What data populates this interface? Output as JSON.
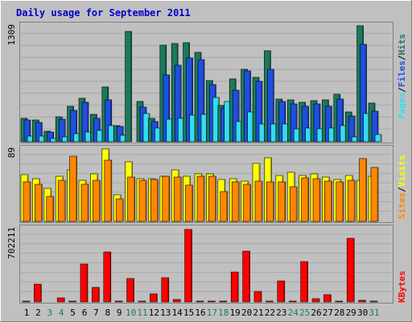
{
  "chart_data": [
    {
      "type": "bar",
      "title": "Daily usage for September 2011",
      "panel": "hits-files-pages",
      "categories": [
        "1",
        "2",
        "3",
        "4",
        "5",
        "6",
        "7",
        "8",
        "9",
        "10",
        "11",
        "12",
        "13",
        "14",
        "15",
        "16",
        "17",
        "18",
        "19",
        "20",
        "21",
        "22",
        "23",
        "24",
        "25",
        "26",
        "27",
        "28",
        "29",
        "30",
        "31"
      ],
      "weekend_days": [
        "3",
        "4",
        "10",
        "11",
        "17",
        "18",
        "24",
        "25",
        "31"
      ],
      "ymax_label": "1309",
      "ylim": [
        0,
        1309
      ],
      "legend": [
        "Pages",
        "/",
        "Files",
        "/",
        "Hits"
      ],
      "series": [
        {
          "name": "Hits",
          "color": "#1a7a5c",
          "values": [
            260,
            240,
            120,
            280,
            400,
            490,
            310,
            610,
            180,
            1240,
            450,
            260,
            1080,
            1100,
            1110,
            1000,
            690,
            410,
            700,
            810,
            720,
            1020,
            480,
            470,
            440,
            460,
            470,
            530,
            330,
            1300,
            430
          ]
        },
        {
          "name": "Files",
          "color": "#1e4fe0",
          "values": [
            240,
            220,
            110,
            250,
            350,
            440,
            260,
            470,
            170,
            0,
            390,
            230,
            750,
            860,
            940,
            920,
            640,
            380,
            580,
            790,
            680,
            810,
            450,
            420,
            400,
            420,
            400,
            480,
            290,
            1090,
            340
          ]
        },
        {
          "name": "Pages",
          "color": "#33ddee",
          "values": [
            65,
            60,
            35,
            50,
            90,
            110,
            130,
            180,
            70,
            0,
            320,
            150,
            250,
            260,
            300,
            310,
            500,
            450,
            230,
            330,
            200,
            200,
            200,
            140,
            150,
            140,
            150,
            180,
            50,
            320,
            80
          ]
        }
      ]
    },
    {
      "type": "bar",
      "panel": "visits-sites",
      "ymax_label": "89",
      "ylim": [
        0,
        89
      ],
      "legend": [
        "Sites",
        "/",
        "Visits"
      ],
      "series": [
        {
          "name": "Visits",
          "color": "#ffff00",
          "values": [
            57,
            52,
            40,
            55,
            63,
            50,
            58,
            88,
            32,
            72,
            52,
            52,
            55,
            63,
            55,
            58,
            58,
            51,
            52,
            49,
            70,
            77,
            56,
            60,
            56,
            58,
            54,
            51,
            56,
            50,
            55
          ]
        },
        {
          "name": "Sites",
          "color": "#ff8800",
          "values": [
            48,
            45,
            30,
            50,
            79,
            45,
            50,
            74,
            27,
            54,
            50,
            51,
            55,
            54,
            44,
            55,
            55,
            36,
            48,
            45,
            49,
            48,
            48,
            42,
            53,
            52,
            49,
            48,
            50,
            76,
            66
          ]
        }
      ]
    },
    {
      "type": "bar",
      "panel": "kbytes",
      "ymax_label": "702211",
      "ylim": [
        0,
        702211
      ],
      "legend": [
        "KBytes"
      ],
      "series": [
        {
          "name": "KBytes",
          "color": "#ff0000",
          "values": [
            5000,
            170000,
            3000,
            40000,
            8000,
            360000,
            140000,
            470000,
            4000,
            220000,
            7000,
            80000,
            230000,
            25000,
            690000,
            8000,
            8000,
            4000,
            280000,
            480000,
            100000,
            8000,
            195000,
            7000,
            380000,
            30000,
            65000,
            6000,
            600000,
            18000,
            5000
          ]
        }
      ]
    }
  ]
}
